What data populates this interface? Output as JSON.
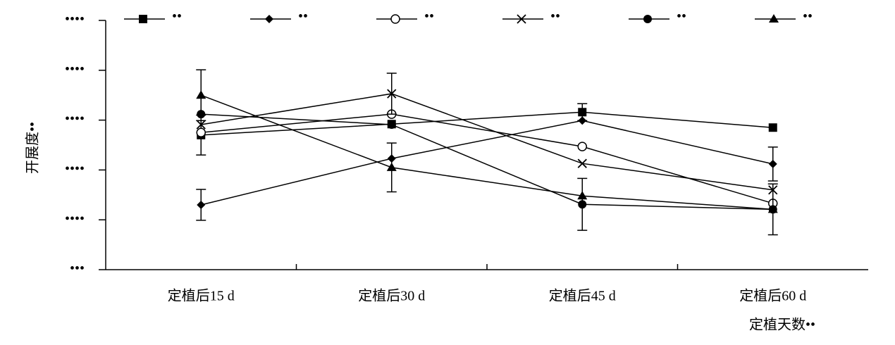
{
  "chart_data": {
    "type": "line",
    "y_label": "开展度••",
    "x_label": "定植天数••",
    "categories": [
      "定植后15 d",
      "定植后30 d",
      "定植后45 d",
      "定植后60 d"
    ],
    "ylim": [
      0,
      5
    ],
    "yticks": [
      {
        "value": 0,
        "label": "•••"
      },
      {
        "value": 1,
        "label": "••••"
      },
      {
        "value": 2,
        "label": "••••"
      },
      {
        "value": 3,
        "label": "••••"
      },
      {
        "value": 4,
        "label": "••••"
      },
      {
        "value": 5,
        "label": "••••"
      }
    ],
    "series": [
      {
        "name": "••",
        "marker": "square",
        "color": "#000000",
        "values": [
          2.7,
          2.92,
          3.16,
          2.85
        ],
        "errors": [
          0.4,
          null,
          0.17,
          null
        ]
      },
      {
        "name": "••",
        "marker": "diamond",
        "color": "#000000",
        "values": [
          1.3,
          2.23,
          2.99,
          2.12
        ],
        "errors": [
          0.31,
          null,
          null,
          0.34
        ]
      },
      {
        "name": "••",
        "marker": "open-circle",
        "color": "#000000",
        "values": [
          2.75,
          3.12,
          2.47,
          1.33
        ],
        "errors": [
          null,
          null,
          null,
          null
        ]
      },
      {
        "name": "••",
        "marker": "cross",
        "color": "#000000",
        "values": [
          2.91,
          3.53,
          2.13,
          1.6
        ],
        "errors": [
          null,
          0.41,
          null,
          null
        ]
      },
      {
        "name": "••",
        "marker": "circle",
        "color": "#000000",
        "values": [
          3.12,
          2.91,
          1.31,
          1.21
        ],
        "errors": [
          null,
          null,
          0.52,
          null
        ]
      },
      {
        "name": "••",
        "marker": "triangle",
        "color": "#000000",
        "values": [
          3.5,
          2.05,
          1.48,
          1.21
        ],
        "errors": [
          0.51,
          0.49,
          null,
          0.51
        ]
      }
    ]
  }
}
